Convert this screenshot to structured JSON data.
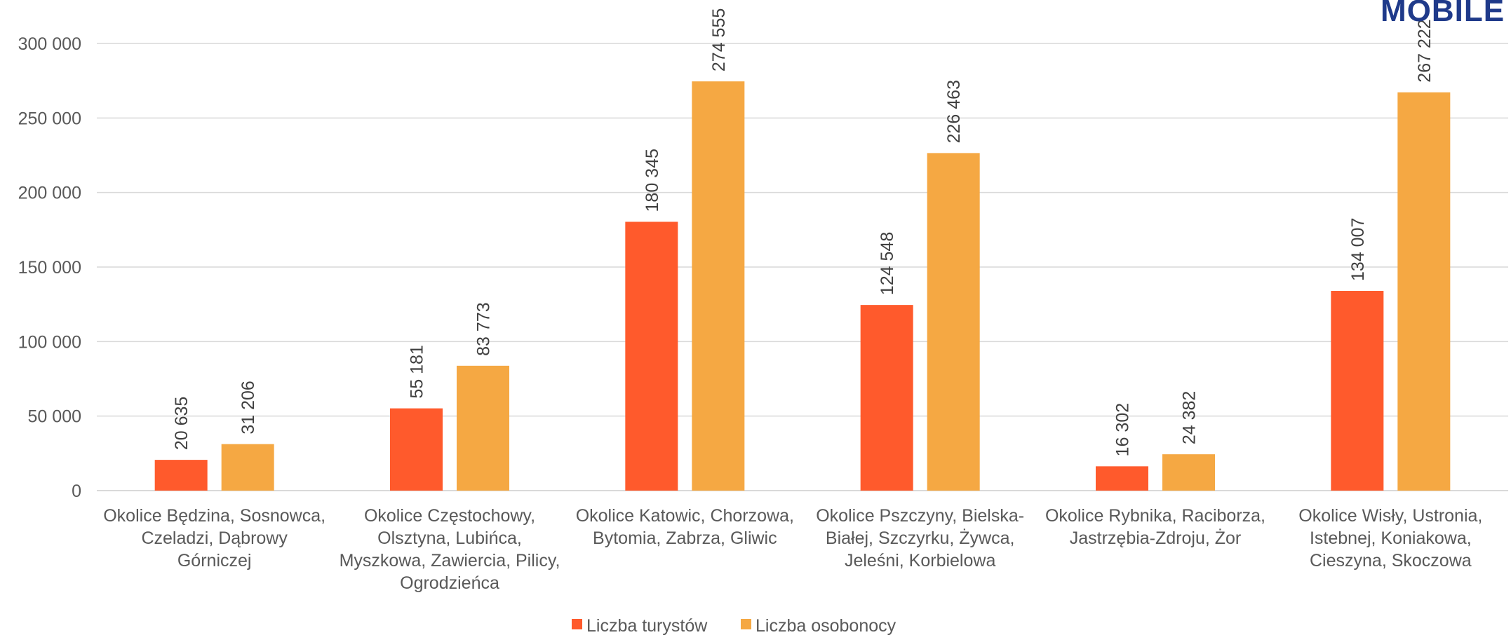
{
  "brand": {
    "logo_text": "MOBILE",
    "logo_color": "#1f3a8a"
  },
  "chart_data": {
    "type": "bar",
    "title": "",
    "xlabel": "",
    "ylabel": "",
    "ylim": [
      0,
      300000
    ],
    "yticks": [
      "0",
      "50 000",
      "100 000",
      "150 000",
      "200 000",
      "250 000",
      "300 000"
    ],
    "ytick_values": [
      0,
      50000,
      100000,
      150000,
      200000,
      250000,
      300000
    ],
    "grid": true,
    "legend_position": "bottom-center",
    "categories": [
      [
        "Okolice Będzina, Sosnowca,",
        "Czeladzi, Dąbrowy",
        "Górniczej"
      ],
      [
        "Okolice Częstochowy,",
        "Olsztyna, Lubińca,",
        "Myszkowa, Zawiercia, Pilicy,",
        "Ogrodzieńca"
      ],
      [
        "Okolice Katowic, Chorzowa,",
        "Bytomia, Zabrza, Gliwic"
      ],
      [
        "Okolice Pszczyny, Bielska-",
        "Białej, Szczyrku, Żywca,",
        "Jeleśni, Korbielowa"
      ],
      [
        "Okolice Rybnika, Raciborza,",
        "Jastrzębia-Zdroju, Żor"
      ],
      [
        "Okolice Wisły, Ustronia,",
        "Istebnej, Koniakowa,",
        "Cieszyna, Skoczowa"
      ]
    ],
    "series": [
      {
        "name": "Liczba turystów",
        "color": "#ff5a2c",
        "values": [
          20635,
          55181,
          180345,
          124548,
          16302,
          134007
        ],
        "labels": [
          "20 635",
          "55 181",
          "180 345",
          "124 548",
          "16 302",
          "134 007"
        ]
      },
      {
        "name": "Liczba osobonocy",
        "color": "#f5a843",
        "values": [
          31206,
          83773,
          274555,
          226463,
          24382,
          267222
        ],
        "labels": [
          "31 206",
          "83 773",
          "274 555",
          "226 463",
          "24 382",
          "267 222"
        ]
      }
    ]
  }
}
